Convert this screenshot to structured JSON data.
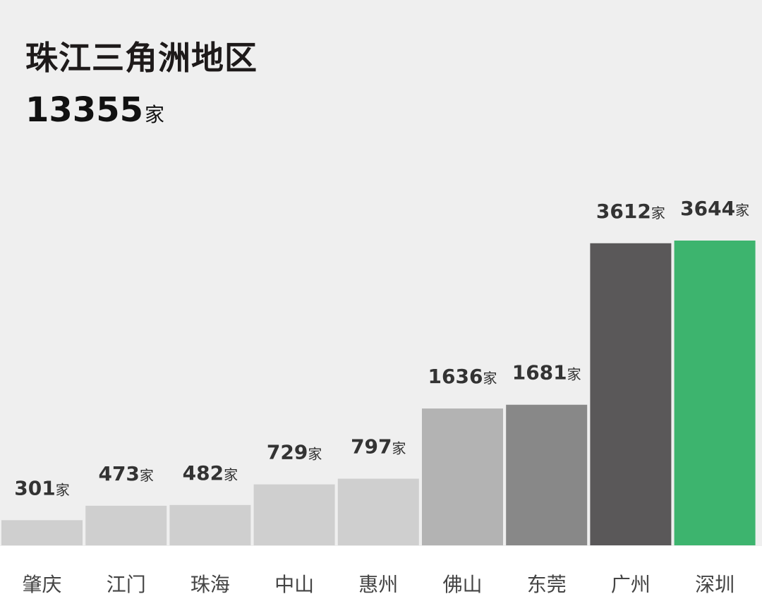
{
  "header": {
    "title": "珠江三角洲地区",
    "total_value": "13355",
    "total_unit": "家"
  },
  "chart_data": {
    "type": "bar",
    "title": "珠江三角洲地区",
    "unit": "家",
    "categories": [
      "肇庆",
      "江门",
      "珠海",
      "中山",
      "惠州",
      "佛山",
      "东莞",
      "广州",
      "深圳"
    ],
    "values": [
      301,
      473,
      482,
      729,
      797,
      1636,
      1681,
      3612,
      3644
    ],
    "colors": [
      "#cfcfcf",
      "#cfcfcf",
      "#cfcfcf",
      "#cfcfcf",
      "#cfcfcf",
      "#b3b3b3",
      "#888888",
      "#5a5859",
      "#3db46e"
    ],
    "ylim": [
      0,
      3644
    ],
    "grid": false,
    "legend": "none"
  }
}
